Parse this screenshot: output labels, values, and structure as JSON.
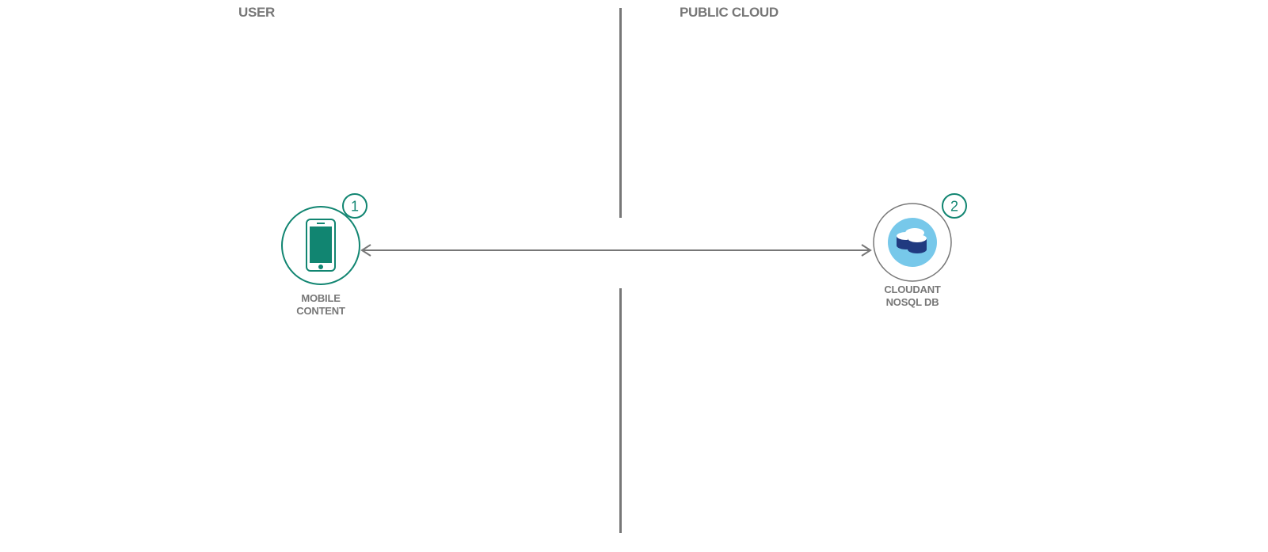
{
  "zones": {
    "user": "USER",
    "public_cloud": "PUBLIC CLOUD"
  },
  "nodes": {
    "mobile": {
      "step": "1",
      "label_line1": "MOBILE",
      "label_line2": "CONTENT",
      "icon": "smartphone-icon"
    },
    "cloudant": {
      "step": "2",
      "label_line1": "CLOUDANT",
      "label_line2": "NOSQL DB",
      "icon": "cloudant-database-icon"
    }
  },
  "colors": {
    "accent_green": "#118571",
    "gray": "#777777",
    "cloud_light_blue": "#77c8ea",
    "db_navy": "#203a80"
  }
}
